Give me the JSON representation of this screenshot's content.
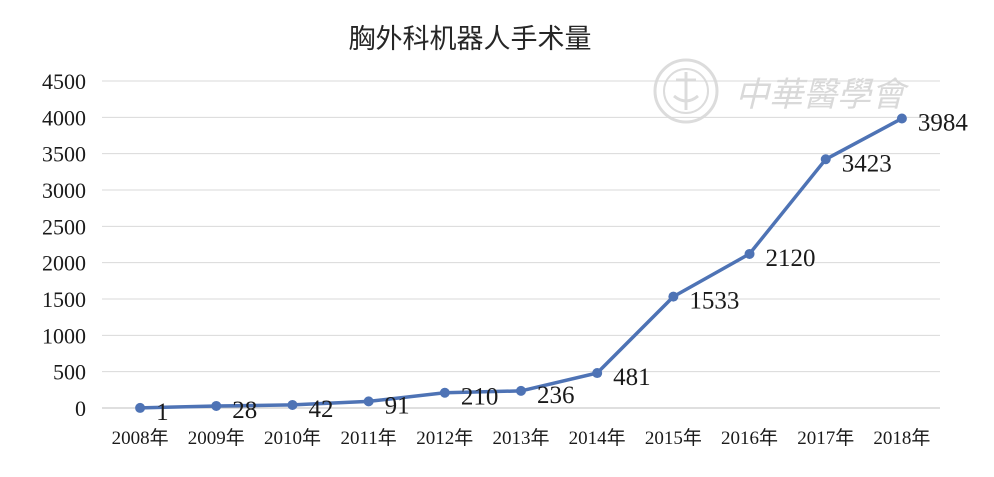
{
  "chart_data": {
    "type": "line",
    "title": "胸外科机器人手术量",
    "categories": [
      "2008年",
      "2009年",
      "2010年",
      "2011年",
      "2012年",
      "2013年",
      "2014年",
      "2015年",
      "2016年",
      "2017年",
      "2018年"
    ],
    "series": [
      {
        "values": [
          1,
          28,
          42,
          91,
          210,
          236,
          481,
          1533,
          2120,
          3423,
          3984
        ]
      }
    ],
    "data_labels": [
      "1",
      "28",
      "42",
      "91",
      "210",
      "236",
      "481",
      "1533",
      "2120",
      "3423",
      "3984"
    ],
    "yticks": [
      "0",
      "500",
      "1000",
      "1500",
      "2000",
      "2500",
      "3000",
      "3500",
      "4000",
      "4500"
    ],
    "ylim": [
      0,
      4500
    ],
    "grid": "horizontal",
    "legend": "none",
    "colors": {
      "line": "#4E73B5",
      "grid": "#d9d9d9",
      "watermark": "#d9d9d9"
    }
  },
  "watermark": {
    "text": "中華醫學會"
  }
}
